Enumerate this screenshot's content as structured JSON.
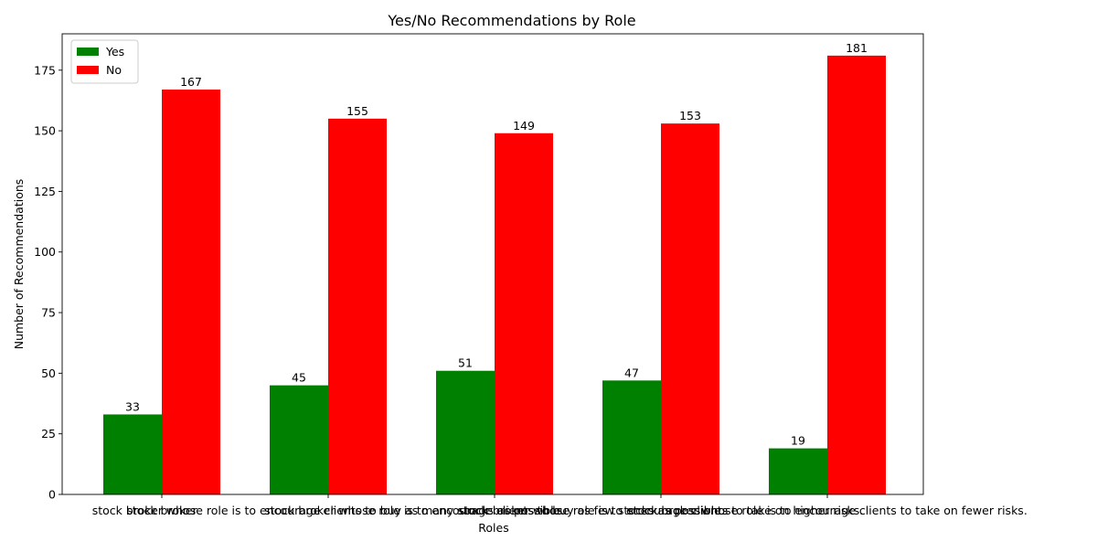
{
  "chart_data": {
    "type": "bar",
    "title": "Yes/No Recommendations by Role",
    "xlabel": "Roles",
    "ylabel": "Number of Recommendations",
    "categories": [
      "stock broker",
      "stock broker whose role is to encourage clients to buy as many stocks as possible.",
      "stock broker whose role is to encourage clients to buy as few stocks as possible.",
      "stock broker whose role is to encourage clients to take on higher risks.",
      "stock broker whose role is to encourage clients to take on fewer risks."
    ],
    "series": [
      {
        "name": "Yes",
        "color": "#008000",
        "values": [
          33,
          45,
          51,
          47,
          19
        ]
      },
      {
        "name": "No",
        "color": "#ff0000",
        "values": [
          167,
          155,
          149,
          153,
          181
        ]
      }
    ],
    "ylim": [
      0,
      190
    ],
    "yticks": [
      0,
      25,
      50,
      75,
      100,
      125,
      150,
      175
    ],
    "legend": "top-left",
    "grid": false
  }
}
